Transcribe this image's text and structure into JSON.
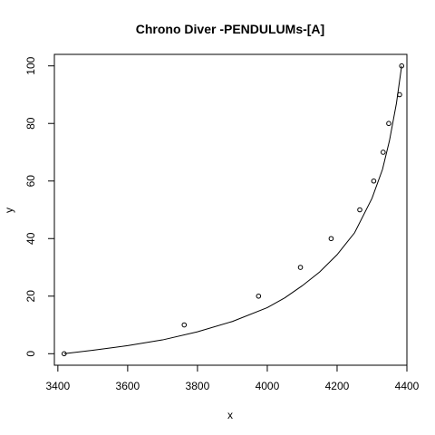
{
  "chart_data": {
    "type": "scatter",
    "title": "Chrono Diver -PENDULUMs-[A]",
    "xlabel": "x",
    "ylabel": "y",
    "xlim": [
      3390,
      4400
    ],
    "ylim": [
      -4,
      104
    ],
    "x_ticks": [
      3400,
      3600,
      3800,
      4000,
      4200,
      4400
    ],
    "y_ticks": [
      0,
      20,
      40,
      60,
      80,
      100
    ],
    "series": [
      {
        "kind": "points",
        "x": [
          3418,
          3762,
          3975,
          4095,
          4183,
          4265,
          4305,
          4332,
          4348,
          4379,
          4385
        ],
        "y": [
          0,
          10,
          20,
          30,
          40,
          50,
          60,
          70,
          80,
          90,
          100
        ]
      },
      {
        "kind": "fitted-curve",
        "x": [
          3418,
          3500,
          3600,
          3700,
          3800,
          3900,
          4000,
          4050,
          4100,
          4150,
          4200,
          4250,
          4300,
          4330,
          4350,
          4370,
          4385
        ],
        "y": [
          0,
          1.2,
          2.8,
          4.8,
          7.6,
          11.2,
          16.0,
          19.4,
          23.6,
          28.4,
          34.4,
          42.0,
          54.0,
          64.0,
          74.0,
          87.0,
          100.0
        ]
      }
    ],
    "grid": false,
    "legend": "none"
  }
}
